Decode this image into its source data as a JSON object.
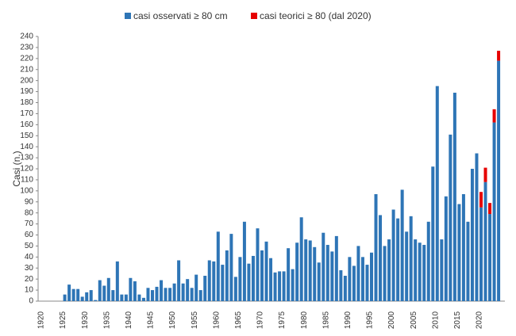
{
  "chart_data": {
    "type": "stacked_bar",
    "y_label": "Casi (n.)",
    "categories": [
      "1920",
      null,
      null,
      null,
      null,
      "1925",
      null,
      null,
      null,
      null,
      "1930",
      null,
      null,
      null,
      null,
      "1935",
      null,
      null,
      null,
      null,
      "1940",
      null,
      null,
      null,
      null,
      "1945",
      null,
      null,
      null,
      null,
      "1950",
      null,
      null,
      null,
      null,
      "1955",
      null,
      null,
      null,
      null,
      "1960",
      null,
      null,
      null,
      null,
      "1965",
      null,
      null,
      null,
      null,
      "1970",
      null,
      null,
      null,
      null,
      "1975",
      null,
      null,
      null,
      null,
      "1980",
      null,
      null,
      null,
      null,
      "1985",
      null,
      null,
      null,
      null,
      "1990",
      null,
      null,
      null,
      null,
      "1995",
      null,
      null,
      null,
      null,
      "2000",
      null,
      null,
      null,
      null,
      "2005",
      null,
      null,
      null,
      null,
      "2010",
      null,
      null,
      null,
      null,
      "2015",
      null,
      null,
      null,
      null,
      "2020",
      null,
      null,
      null,
      null
    ],
    "series": [
      {
        "name": "casi osservati ≥ 80 cm",
        "color": "#2e75b6",
        "values": [
          0,
          0,
          0,
          0,
          0,
          6,
          15,
          11,
          11,
          4,
          8,
          10,
          1,
          19,
          14,
          21,
          10,
          36,
          6,
          6,
          21,
          18,
          6,
          3,
          12,
          10,
          13,
          19,
          12,
          12,
          16,
          37,
          16,
          20,
          12,
          24,
          10,
          23,
          37,
          36,
          63,
          33,
          46,
          61,
          22,
          40,
          72,
          34,
          41,
          66,
          46,
          54,
          39,
          26,
          27,
          27,
          48,
          29,
          53,
          76,
          56,
          55,
          49,
          35,
          62,
          51,
          45,
          59,
          28,
          23,
          40,
          32,
          50,
          40,
          33,
          44,
          97,
          78,
          50,
          56,
          83,
          75,
          101,
          63,
          77,
          56,
          53,
          51,
          72,
          122,
          195,
          56,
          95,
          151,
          189,
          88,
          97,
          72,
          120,
          134,
          85,
          108,
          79,
          162,
          218
        ]
      },
      {
        "name": "casi teorici ≥ 80 (dal 2020)",
        "color": "#e60000",
        "values": [
          null,
          null,
          null,
          null,
          null,
          null,
          null,
          null,
          null,
          null,
          null,
          null,
          null,
          null,
          null,
          null,
          null,
          null,
          null,
          null,
          null,
          null,
          null,
          null,
          null,
          null,
          null,
          null,
          null,
          null,
          null,
          null,
          null,
          null,
          null,
          null,
          null,
          null,
          null,
          null,
          null,
          null,
          null,
          null,
          null,
          null,
          null,
          null,
          null,
          null,
          null,
          null,
          null,
          null,
          null,
          null,
          null,
          null,
          null,
          null,
          null,
          null,
          null,
          null,
          null,
          null,
          null,
          null,
          null,
          null,
          null,
          null,
          null,
          null,
          null,
          null,
          null,
          null,
          null,
          null,
          null,
          null,
          null,
          null,
          null,
          null,
          null,
          null,
          null,
          null,
          null,
          null,
          null,
          null,
          null,
          null,
          null,
          null,
          null,
          null,
          14,
          13,
          10,
          12,
          9
        ]
      }
    ],
    "ylim": [
      0,
      240
    ],
    "yticks": [
      0,
      10,
      20,
      30,
      40,
      50,
      60,
      70,
      80,
      90,
      100,
      110,
      120,
      130,
      140,
      150,
      160,
      170,
      180,
      190,
      200,
      210,
      220,
      230,
      240
    ],
    "legend": "top"
  }
}
